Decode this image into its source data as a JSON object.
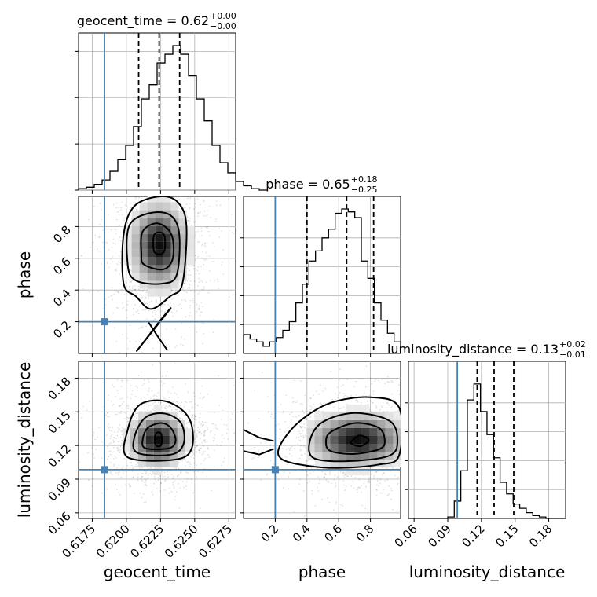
{
  "chart_data": {
    "type": "corner",
    "parameters": [
      {
        "name": "geocent_time",
        "xlabel": "geocent_time",
        "title": {
          "prefix": "geocent_time = 0.62",
          "upper": "+0.00",
          "lower": "−0.00"
        },
        "range": [
          0.6165,
          0.628
        ],
        "ticks": [
          0.6175,
          0.62,
          0.6225,
          0.625,
          0.6275
        ],
        "tick_labels": [
          "0.6175",
          "0.6200",
          "0.6225",
          "0.6250",
          "0.6275"
        ],
        "truth": 0.6184,
        "quantiles": [
          0.6209,
          0.6224,
          0.6239
        ],
        "hist_edges_start": 0.6165,
        "hist_edge_step": 0.000575,
        "hist_counts": [
          0.01,
          0.02,
          0.04,
          0.07,
          0.13,
          0.21,
          0.31,
          0.44,
          0.63,
          0.73,
          0.88,
          0.94,
          1.0,
          0.94,
          0.79,
          0.63,
          0.48,
          0.31,
          0.19,
          0.12,
          0.06,
          0.03,
          0.01,
          0.0
        ],
        "marginal_yticks": [
          0,
          0.32,
          0.64,
          0.96
        ]
      },
      {
        "name": "phase",
        "xlabel": "phase",
        "ylabel": "phase",
        "title": {
          "prefix": "phase = 0.65",
          "upper": "+0.18",
          "lower": "−0.25"
        },
        "range": [
          0.0,
          0.99
        ],
        "ticks": [
          0.2,
          0.4,
          0.6,
          0.8
        ],
        "tick_labels": [
          "0.2",
          "0.4",
          "0.6",
          "0.8"
        ],
        "truth": 0.2,
        "quantiles": [
          0.4,
          0.65,
          0.82
        ],
        "hist_edges_start": 0.0,
        "hist_edge_step": 0.04125,
        "hist_counts": [
          0.13,
          0.1,
          0.08,
          0.05,
          0.08,
          0.11,
          0.16,
          0.22,
          0.35,
          0.48,
          0.64,
          0.71,
          0.8,
          0.86,
          0.97,
          1.0,
          0.98,
          0.94,
          0.64,
          0.52,
          0.35,
          0.23,
          0.14,
          0.08
        ],
        "marginal_yticks": [
          0.2,
          0.4,
          0.6,
          0.8
        ]
      },
      {
        "name": "luminosity_distance",
        "xlabel": "luminosity_distance",
        "ylabel": "luminosity_distance",
        "title": {
          "prefix": "luminosity_distance = 0.13",
          "upper": "+0.02",
          "lower": "−0.01"
        },
        "range": [
          0.055,
          0.195
        ],
        "ticks": [
          0.06,
          0.09,
          0.12,
          0.15,
          0.18
        ],
        "tick_labels": [
          "0.06",
          "0.09",
          "0.12",
          "0.15",
          "0.18"
        ],
        "truth": 0.0985,
        "quantiles": [
          0.1162,
          0.1313,
          0.1488
        ],
        "hist_edges_start": 0.055,
        "hist_edge_step": 0.00583,
        "hist_counts": [
          0.0,
          0.0,
          0.0,
          0.0,
          0.0,
          0.0,
          0.01,
          0.12,
          0.33,
          0.82,
          0.93,
          0.74,
          0.58,
          0.42,
          0.25,
          0.17,
          0.1,
          0.07,
          0.04,
          0.02,
          0.01,
          0.0,
          0.0,
          0.0
        ],
        "marginal_yticks": [
          0.2,
          0.4,
          0.6,
          0.8
        ]
      }
    ],
    "joint": [
      {
        "x": "geocent_time",
        "y": "phase",
        "center": [
          0.6224,
          0.68
        ],
        "contours": [
          {
            "x": [
              0.62205,
              0.62275,
              0.62275,
              0.62205
            ],
            "y": [
              0.64,
              0.64,
              0.75,
              0.75
            ]
          },
          {
            "x": [
              0.6213,
              0.6227,
              0.6234,
              0.6233,
              0.6223,
              0.6212,
              0.6211
            ],
            "y": [
              0.56,
              0.53,
              0.6,
              0.75,
              0.82,
              0.77,
              0.63
            ]
          },
          {
            "x": [
              0.6207,
              0.6226,
              0.6237,
              0.6238,
              0.6226,
              0.6203,
              0.6201
            ],
            "y": [
              0.46,
              0.44,
              0.5,
              0.79,
              0.89,
              0.82,
              0.56
            ]
          },
          {
            "x": [
              0.6198,
              0.6207,
              0.6218,
              0.6232,
              0.6241,
              0.6244,
              0.6238,
              0.6225,
              0.6206,
              0.6198
            ],
            "y": [
              0.44,
              0.36,
              0.28,
              0.36,
              0.44,
              0.8,
              0.95,
              0.99,
              0.93,
              0.75
            ]
          },
          {
            "x": [
              0.6208,
              0.6217,
              0.6224,
              0.6232
            ],
            "y": [
              0.02,
              0.12,
              0.2,
              0.28
            ]
          },
          {
            "x": [
              0.623,
              0.6222,
              0.6216
            ],
            "y": [
              0.02,
              0.12,
              0.2
            ]
          }
        ]
      },
      {
        "x": "geocent_time",
        "y": "luminosity_distance",
        "center": [
          0.6223,
          0.125
        ],
        "contours": [
          {
            "x": [
              0.62215,
              0.62255,
              0.62255,
              0.62215
            ],
            "y": [
              0.1205,
              0.1205,
              0.1305,
              0.1305
            ]
          },
          {
            "x": [
              0.6214,
              0.6231,
              0.6236,
              0.6233,
              0.6226,
              0.6216,
              0.6212
            ],
            "y": [
              0.1175,
              0.1175,
              0.124,
              0.135,
              0.14,
              0.136,
              0.126
            ]
          },
          {
            "x": [
              0.6208,
              0.6233,
              0.6242,
              0.624,
              0.6228,
              0.6214,
              0.6206
            ],
            "y": [
              0.1135,
              0.112,
              0.122,
              0.14,
              0.1485,
              0.145,
              0.128
            ]
          },
          {
            "x": [
              0.6201,
              0.6236,
              0.6248,
              0.6246,
              0.623,
              0.621,
              0.6201
            ],
            "y": [
              0.1095,
              0.1075,
              0.118,
              0.144,
              0.159,
              0.1565,
              0.134
            ]
          }
        ]
      },
      {
        "x": "phase",
        "y": "luminosity_distance",
        "center": [
          0.72,
          0.125
        ],
        "contours": [
          {
            "x": [
              0.68,
              0.74,
              0.79,
              0.73,
              0.68
            ],
            "y": [
              0.1215,
              0.1195,
              0.125,
              0.129,
              0.1235
            ]
          },
          {
            "x": [
              0.55,
              0.7,
              0.86,
              0.89,
              0.85,
              0.7,
              0.55,
              0.52
            ],
            "y": [
              0.115,
              0.1125,
              0.117,
              0.125,
              0.136,
              0.14,
              0.132,
              0.123
            ]
          },
          {
            "x": [
              0.44,
              0.65,
              0.92,
              0.97,
              0.92,
              0.7,
              0.5,
              0.42
            ],
            "y": [
              0.109,
              0.106,
              0.111,
              0.125,
              0.142,
              0.149,
              0.141,
              0.125
            ]
          },
          {
            "x": [
              0.24,
              0.4,
              0.6,
              0.85,
              0.98,
              0.98,
              0.8,
              0.55,
              0.35,
              0.23
            ],
            "y": [
              0.108,
              0.102,
              0.1,
              0.103,
              0.111,
              0.154,
              0.163,
              0.158,
              0.141,
              0.12
            ]
          },
          {
            "x": [
              0.0,
              0.1,
              0.19
            ],
            "y": [
              0.115,
              0.112,
              0.117
            ]
          },
          {
            "x": [
              0.0,
              0.1,
              0.19
            ],
            "y": [
              0.134,
              0.127,
              0.124
            ]
          }
        ]
      }
    ],
    "grid": true
  }
}
